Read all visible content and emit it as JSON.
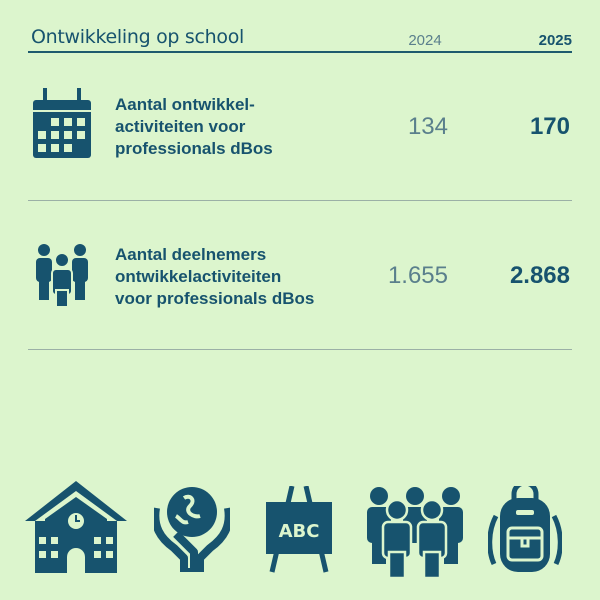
{
  "header": {
    "title": "Ontwikkeling op school",
    "col_prev": "2024",
    "col_curr": "2025"
  },
  "rows": [
    {
      "icon": "calendar-icon",
      "label_lines": [
        "Aantal ontwikkel-",
        "activiteiten voor",
        "professionals dBos"
      ],
      "value_2024": "134",
      "value_2025": "170"
    },
    {
      "icon": "people-group-icon",
      "label_lines": [
        "Aantal deelnemers",
        "ontwikkelactiviteiten",
        "voor professionals dBos"
      ],
      "value_2024": "1.655",
      "value_2025": "2.868"
    }
  ],
  "footer_icons": [
    "school-building-icon",
    "hands-globe-icon",
    "abc-easel-icon",
    "crowd-icon",
    "backpack-icon"
  ],
  "colors": {
    "background": "#dcf5cd",
    "primary": "#17536e",
    "muted": "#5a7f8c"
  }
}
